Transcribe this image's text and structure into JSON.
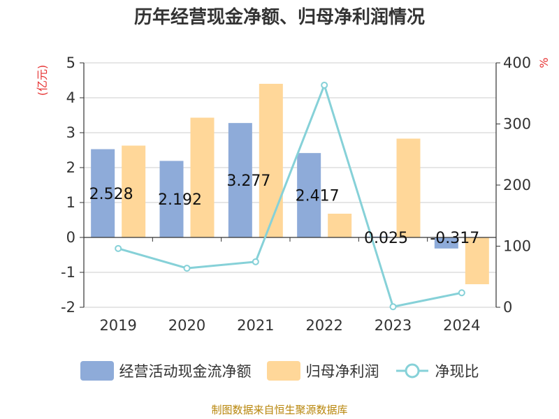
{
  "title": "历年经营现金净额、归母净利润情况",
  "source": "制图数据来自恒生聚源数据库",
  "chart_data": {
    "type": "bar",
    "categories": [
      "2019",
      "2020",
      "2021",
      "2022",
      "2023",
      "2024"
    ],
    "series": [
      {
        "name": "经营活动现金流净额",
        "kind": "bar",
        "axis": "left",
        "color": "#8eabd9",
        "values": [
          2.528,
          2.192,
          3.277,
          2.417,
          0.025,
          -0.317
        ]
      },
      {
        "name": "归母净利润",
        "kind": "bar",
        "axis": "left",
        "color": "#ffd799",
        "values": [
          2.63,
          3.43,
          4.4,
          0.68,
          2.83,
          -1.34
        ]
      },
      {
        "name": "净现比",
        "kind": "line",
        "axis": "right",
        "color": "#86d1d8",
        "values": [
          96.2,
          63.9,
          74.5,
          363.5,
          0.9,
          23.7
        ]
      }
    ],
    "data_labels": [
      "2.528",
      "2.192",
      "3.277",
      "2.417",
      "0.025",
      "-0.317"
    ],
    "y_left": {
      "label": "(亿元)",
      "min": -2,
      "max": 5,
      "ticks": [
        "5",
        "4",
        "3",
        "2",
        "1",
        "0",
        "-1",
        "-2"
      ]
    },
    "y_right": {
      "label": "%",
      "min": 0,
      "max": 400,
      "ticks": [
        "400",
        "300",
        "200",
        "100",
        "0"
      ]
    },
    "grid": true,
    "legend_position": "bottom"
  },
  "legend": [
    {
      "label": "经营活动现金流净额",
      "color": "#8eabd9",
      "type": "bar"
    },
    {
      "label": "归母净利润",
      "color": "#ffd799",
      "type": "bar"
    },
    {
      "label": "净现比",
      "color": "#86d1d8",
      "type": "line"
    }
  ]
}
